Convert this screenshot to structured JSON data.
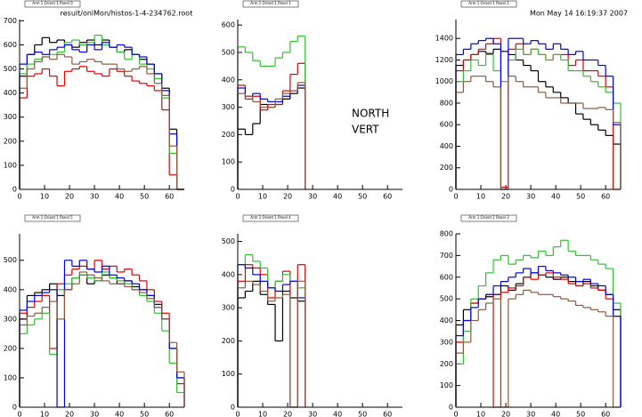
{
  "header": {
    "file": "result/onlMon/histos-1-4-234762.root",
    "date": "Mon May 14 16:19:37 2007"
  },
  "chart_data": [
    {
      "type": "histogram",
      "title": "Arm 1 Orient 1 Panel 0",
      "bins": [
        0,
        3,
        6,
        9,
        12,
        15,
        18,
        21,
        24,
        27,
        30,
        33,
        36,
        39,
        42,
        45,
        48,
        51,
        54,
        57,
        60,
        63,
        66
      ],
      "xlim": [
        0,
        66
      ],
      "xticks": [
        0,
        10,
        20,
        30,
        40,
        50,
        60
      ],
      "ylim": [
        0,
        705
      ],
      "yticks": [
        0,
        100,
        200,
        300,
        400,
        500,
        600,
        700
      ],
      "series": [
        {
          "color": "#000000",
          "values": [
            470,
            560,
            600,
            630,
            610,
            620,
            600,
            590,
            610,
            620,
            600,
            620,
            590,
            570,
            580,
            560,
            540,
            520,
            480,
            420,
            250,
            0
          ]
        },
        {
          "color": "#e00000",
          "values": [
            380,
            470,
            480,
            500,
            470,
            430,
            490,
            500,
            510,
            490,
            480,
            470,
            500,
            490,
            470,
            450,
            440,
            430,
            410,
            330,
            60,
            0
          ]
        },
        {
          "color": "#30c030",
          "values": [
            480,
            520,
            540,
            550,
            560,
            570,
            610,
            620,
            600,
            610,
            640,
            600,
            590,
            570,
            540,
            560,
            520,
            500,
            460,
            380,
            150,
            0
          ]
        },
        {
          "color": "#0000e0",
          "values": [
            520,
            560,
            570,
            560,
            580,
            590,
            600,
            580,
            570,
            600,
            580,
            610,
            590,
            600,
            590,
            560,
            550,
            520,
            480,
            410,
            230,
            0
          ]
        },
        {
          "color": "#8b5a40",
          "values": [
            420,
            500,
            530,
            550,
            540,
            560,
            550,
            520,
            530,
            540,
            530,
            520,
            520,
            500,
            490,
            500,
            510,
            480,
            440,
            390,
            180,
            0
          ]
        }
      ]
    },
    {
      "type": "histogram",
      "title": "Arm 1 Orient 1 Panel 1",
      "bins": [
        0,
        3,
        6,
        9,
        12,
        15,
        18,
        21,
        24,
        27
      ],
      "xlim": [
        0,
        66
      ],
      "xticks": [
        0,
        10,
        20,
        30,
        40,
        50,
        60
      ],
      "ylim": [
        0,
        620
      ],
      "yticks": [
        0,
        100,
        200,
        300,
        400,
        500,
        600
      ],
      "annotations": [
        "NORTH",
        "VERT"
      ],
      "series": [
        {
          "color": "#000000",
          "values": [
            220,
            200,
            240,
            310,
            300,
            310,
            330,
            350,
            370
          ]
        },
        {
          "color": "#e00000",
          "values": [
            380,
            330,
            340,
            290,
            310,
            310,
            360,
            420,
            460
          ]
        },
        {
          "color": "#30c030",
          "values": [
            520,
            500,
            470,
            450,
            450,
            480,
            500,
            540,
            560
          ]
        },
        {
          "color": "#0000e0",
          "values": [
            370,
            340,
            350,
            330,
            320,
            320,
            340,
            360,
            380
          ]
        },
        {
          "color": "#8b5a40",
          "values": [
            350,
            340,
            320,
            300,
            300,
            330,
            350,
            360,
            390
          ]
        }
      ]
    },
    {
      "type": "histogram",
      "title": "Arm 1 Orient 1 Panel 2",
      "bins": [
        0,
        3,
        6,
        9,
        12,
        15,
        18,
        21,
        24,
        27,
        30,
        33,
        36,
        39,
        42,
        45,
        48,
        51,
        54,
        57,
        60,
        63,
        66
      ],
      "xlim": [
        0,
        66
      ],
      "xticks": [
        0,
        10,
        20,
        30,
        40,
        50,
        60
      ],
      "ylim": [
        0,
        1575
      ],
      "yticks": [
        0,
        200,
        400,
        600,
        800,
        1000,
        1200,
        1400
      ],
      "series": [
        {
          "color": "#000000",
          "values": [
            1150,
            1200,
            1250,
            1280,
            1260,
            1300,
            1280,
            1250,
            1200,
            1150,
            1100,
            1000,
            950,
            900,
            850,
            800,
            700,
            650,
            600,
            550,
            500,
            420
          ]
        },
        {
          "color": "#e00000",
          "values": [
            1100,
            1200,
            1250,
            1300,
            1350,
            1400,
            20,
            1300,
            1350,
            1250,
            1300,
            1250,
            1200,
            1250,
            1250,
            1150,
            1200,
            1100,
            1100,
            1050,
            950,
            0
          ]
        },
        {
          "color": "#30c030",
          "values": [
            1000,
            1100,
            1200,
            1150,
            1250,
            1100,
            1000,
            1200,
            1300,
            1250,
            1300,
            1250,
            1200,
            1250,
            1200,
            1100,
            1100,
            1050,
            1000,
            950,
            900,
            800
          ]
        },
        {
          "color": "#0000e0",
          "values": [
            1250,
            1300,
            1350,
            1380,
            1400,
            1350,
            0,
            1400,
            1400,
            1350,
            1380,
            1350,
            1300,
            1350,
            1300,
            1250,
            1280,
            1200,
            1200,
            1150,
            1050,
            600
          ]
        },
        {
          "color": "#8b5a40",
          "values": [
            900,
            1000,
            1050,
            1050,
            1000,
            950,
            0,
            1050,
            1000,
            950,
            950,
            900,
            850,
            850,
            800,
            800,
            800,
            750,
            750,
            760,
            740,
            620
          ]
        }
      ]
    },
    {
      "type": "histogram",
      "title": "Arm 1 Orient 1 Panel 5",
      "bins": [
        0,
        3,
        6,
        9,
        12,
        15,
        18,
        21,
        24,
        27,
        30,
        33,
        36,
        39,
        42,
        45,
        48,
        51,
        54,
        57,
        60,
        63,
        66
      ],
      "xlim": [
        0,
        66
      ],
      "xticks": [
        0,
        10,
        20,
        30,
        40,
        50,
        60
      ],
      "ylim": [
        0,
        590
      ],
      "yticks": [
        0,
        100,
        200,
        300,
        400,
        500
      ],
      "series": [
        {
          "color": "#000000",
          "values": [
            300,
            380,
            390,
            400,
            420,
            380,
            400,
            440,
            450,
            420,
            430,
            450,
            440,
            420,
            430,
            410,
            400,
            380,
            350,
            300,
            200,
            100
          ]
        },
        {
          "color": "#e00000",
          "values": [
            320,
            340,
            360,
            380,
            200,
            420,
            450,
            470,
            480,
            470,
            500,
            470,
            480,
            460,
            470,
            450,
            430,
            400,
            360,
            320,
            200,
            80
          ]
        },
        {
          "color": "#30c030",
          "values": [
            250,
            280,
            300,
            320,
            180,
            400,
            420,
            440,
            450,
            440,
            430,
            460,
            440,
            430,
            420,
            400,
            380,
            360,
            320,
            260,
            150,
            50
          ]
        },
        {
          "color": "#0000e0",
          "values": [
            330,
            360,
            380,
            390,
            400,
            0,
            500,
            480,
            500,
            470,
            460,
            480,
            450,
            440,
            430,
            420,
            400,
            380,
            340,
            300,
            200,
            100
          ]
        },
        {
          "color": "#8b5a40",
          "values": [
            280,
            310,
            320,
            340,
            360,
            300,
            400,
            420,
            460,
            450,
            440,
            430,
            420,
            420,
            410,
            400,
            390,
            370,
            340,
            300,
            220,
            120
          ]
        }
      ]
    },
    {
      "type": "histogram",
      "title": "Arm 1 Orient 1 Panel 4",
      "bins": [
        0,
        3,
        6,
        9,
        12,
        15,
        18,
        21,
        24,
        27
      ],
      "xlim": [
        0,
        66
      ],
      "xticks": [
        0,
        10,
        20,
        30,
        40,
        50,
        60
      ],
      "ylim": [
        0,
        523
      ],
      "yticks": [
        0,
        100,
        200,
        300,
        400,
        500
      ],
      "series": [
        {
          "color": "#000000",
          "values": [
            330,
            350,
            380,
            340,
            310,
            200,
            350,
            330,
            320
          ]
        },
        {
          "color": "#e00000",
          "values": [
            380,
            430,
            420,
            400,
            330,
            380,
            410,
            0,
            430
          ]
        },
        {
          "color": "#30c030",
          "values": [
            430,
            460,
            440,
            420,
            360,
            380,
            400,
            380,
            360
          ]
        },
        {
          "color": "#0000e0",
          "values": [
            430,
            420,
            400,
            380,
            360,
            350,
            370,
            380,
            330
          ]
        },
        {
          "color": "#8b5a40",
          "values": [
            360,
            380,
            370,
            350,
            320,
            330,
            340,
            0,
            380
          ]
        }
      ]
    },
    {
      "type": "histogram",
      "title": "Arm 1 Orient 1 Panel 3",
      "bins": [
        0,
        3,
        6,
        9,
        12,
        15,
        18,
        21,
        24,
        27,
        30,
        33,
        36,
        39,
        42,
        45,
        48,
        51,
        54,
        57,
        60,
        63,
        66
      ],
      "xlim": [
        0,
        66
      ],
      "xticks": [
        0,
        10,
        20,
        30,
        40,
        50,
        60
      ],
      "ylim": [
        0,
        800
      ],
      "yticks": [
        0,
        100,
        200,
        300,
        400,
        500,
        600,
        700,
        800
      ],
      "series": [
        {
          "color": "#000000",
          "values": [
            380,
            450,
            480,
            500,
            510,
            520,
            560,
            540,
            570,
            600,
            620,
            610,
            600,
            590,
            600,
            580,
            560,
            580,
            560,
            540,
            520,
            450
          ]
        },
        {
          "color": "#e00000",
          "values": [
            300,
            400,
            480,
            500,
            520,
            0,
            530,
            550,
            560,
            600,
            590,
            610,
            620,
            600,
            590,
            570,
            560,
            570,
            550,
            540,
            500,
            420
          ]
        },
        {
          "color": "#30c030",
          "values": [
            200,
            350,
            500,
            560,
            620,
            680,
            700,
            660,
            680,
            700,
            690,
            720,
            700,
            740,
            770,
            720,
            700,
            700,
            680,
            660,
            640,
            480
          ]
        },
        {
          "color": "#0000e0",
          "values": [
            330,
            400,
            460,
            500,
            520,
            560,
            580,
            600,
            620,
            640,
            620,
            650,
            630,
            620,
            610,
            600,
            580,
            590,
            570,
            560,
            520,
            420
          ]
        },
        {
          "color": "#8b5a40",
          "values": [
            250,
            300,
            400,
            450,
            480,
            500,
            0,
            500,
            520,
            540,
            530,
            520,
            520,
            510,
            500,
            490,
            470,
            460,
            450,
            440,
            420,
            0
          ]
        }
      ]
    }
  ]
}
